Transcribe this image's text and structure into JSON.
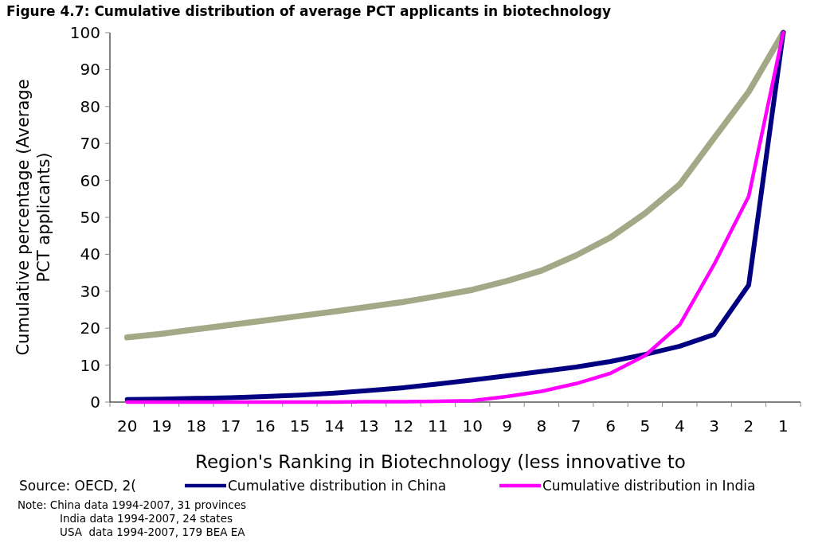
{
  "chart_data": {
    "type": "line",
    "title": "Figure 4.7: Cumulative distribution of average PCT applicants in biotechnology",
    "xlabel": "Region's Ranking in Biotechnology (less innovative to",
    "ylabel": "Cumulative percentage (Average PCT applicants)",
    "categories": [
      "20",
      "19",
      "18",
      "17",
      "16",
      "15",
      "14",
      "13",
      "12",
      "11",
      "10",
      "9",
      "8",
      "7",
      "6",
      "5",
      "4",
      "3",
      "2",
      "1"
    ],
    "series": [
      {
        "color": "#a3a887",
        "values": [
          17.5,
          18.5,
          19.7,
          20.9,
          22.1,
          23.3,
          24.5,
          25.8,
          27.1,
          28.7,
          30.4,
          32.8,
          35.6,
          39.7,
          44.6,
          51.1,
          58.9,
          71.5,
          84.0,
          100
        ]
      },
      {
        "name": "Cumulative distribution in China",
        "color": "#000080",
        "values": [
          0.7,
          0.8,
          1.0,
          1.2,
          1.5,
          1.9,
          2.4,
          3.1,
          3.9,
          4.9,
          6.0,
          7.1,
          8.3,
          9.5,
          11.0,
          12.9,
          15.1,
          18.3,
          31.7,
          100
        ]
      },
      {
        "name": "Cumulative distribution in India",
        "color": "#ff00ff",
        "values": [
          0,
          0,
          0,
          0,
          0,
          0,
          0,
          0.1,
          0.1,
          0.2,
          0.4,
          1.5,
          2.9,
          5.0,
          7.8,
          12.6,
          20.9,
          37.3,
          55.7,
          100
        ]
      }
    ],
    "ylim": [
      0,
      100
    ],
    "yticks": [
      0,
      10,
      20,
      30,
      40,
      50,
      60,
      70,
      80,
      90,
      100
    ],
    "grid": false,
    "legend": "bottom",
    "marker": "none",
    "line_style": "solid",
    "annotations": [
      "Source: OECD, 2(",
      "Note: China data 1994-2007, 31 provinces",
      "India data 1994-2007, 24 states",
      "USA  data 1994-2007, 179 BEA EA"
    ]
  }
}
